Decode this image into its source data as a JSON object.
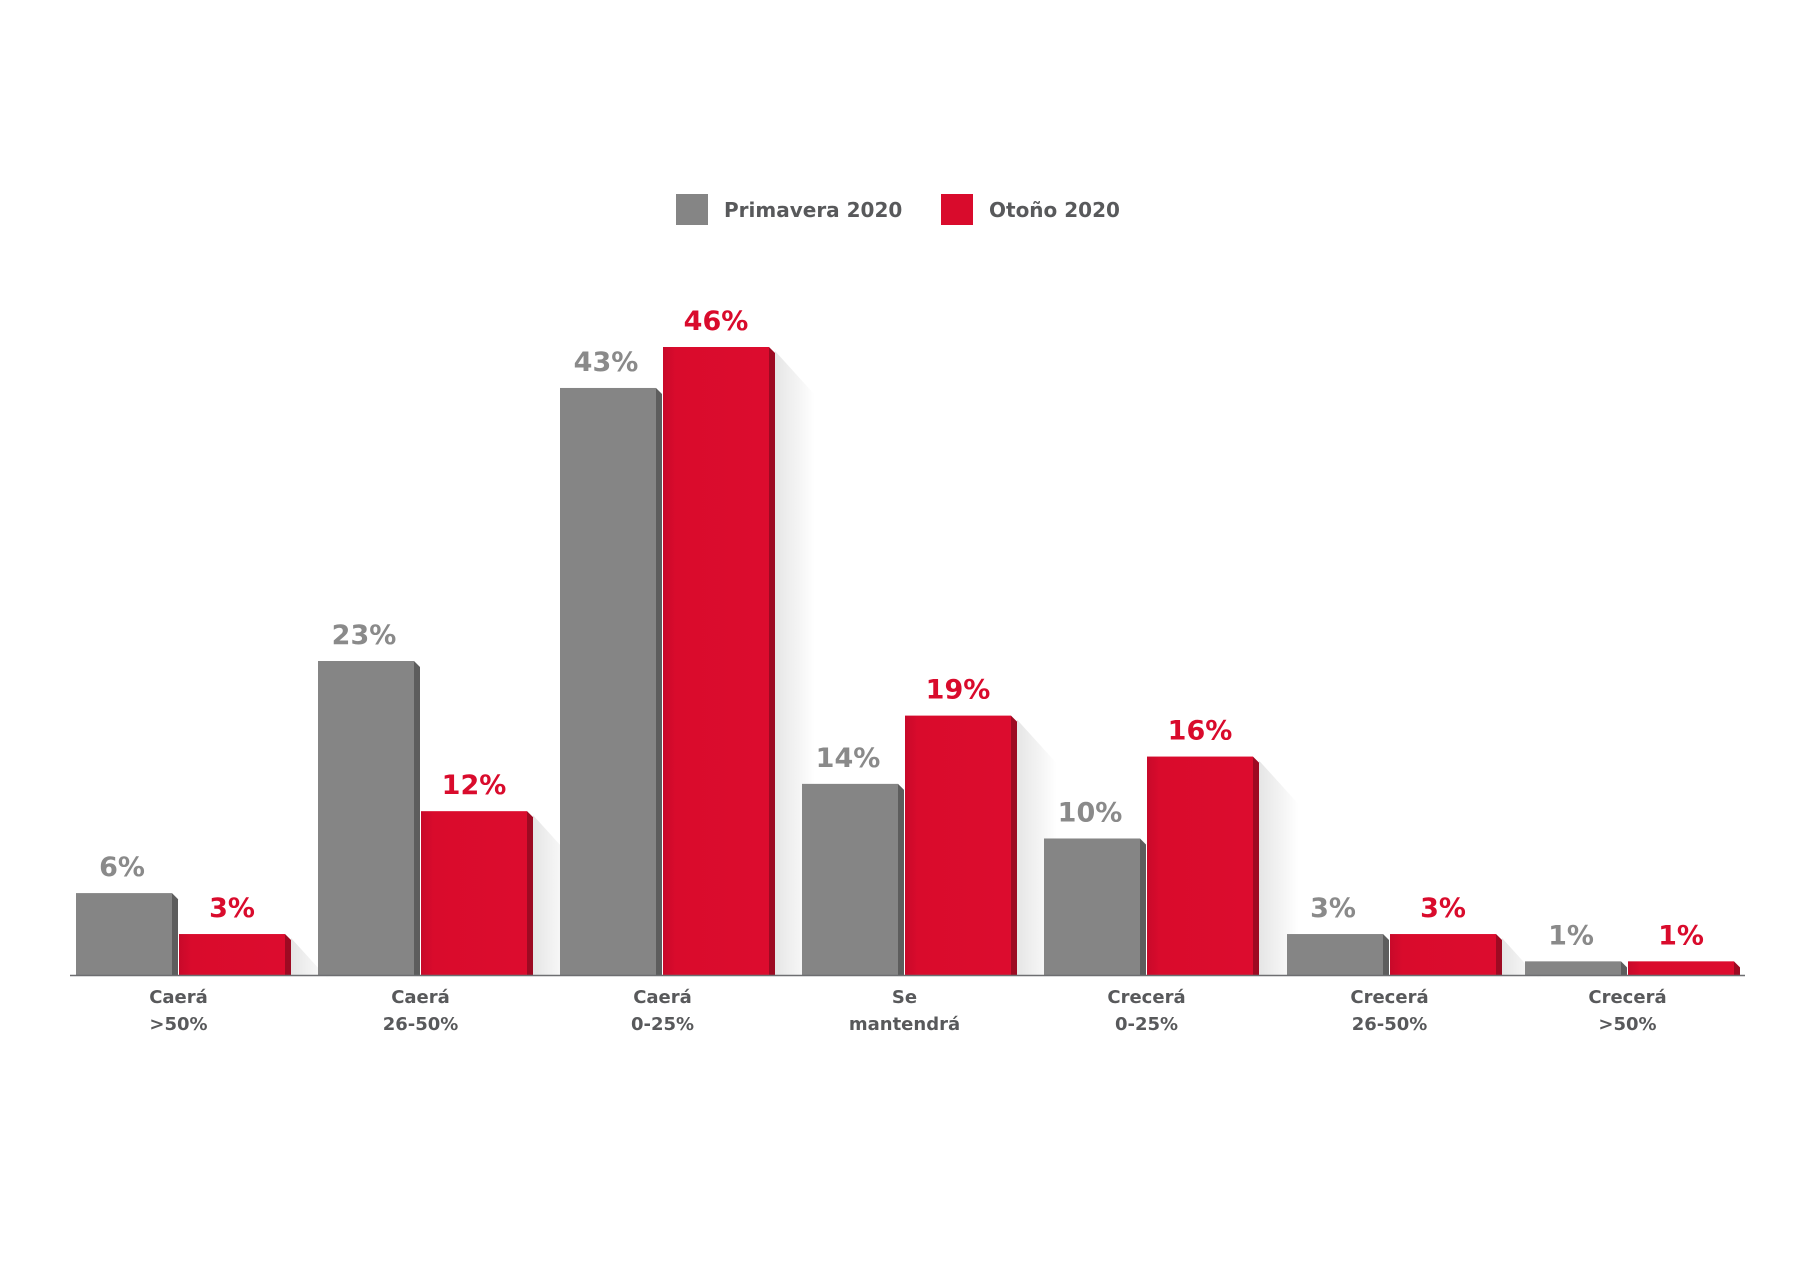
{
  "chart_data": {
    "type": "bar",
    "title": "",
    "xlabel": "",
    "ylabel": "",
    "ylim": [
      0,
      46
    ],
    "grid": false,
    "legend_position": "top-center",
    "categories": [
      [
        "Caerá",
        ">50%"
      ],
      [
        "Caerá",
        "26-50%"
      ],
      [
        "Caerá",
        "0-25%"
      ],
      [
        "Se",
        "mantendrá"
      ],
      [
        "Crecerá",
        "0-25%"
      ],
      [
        "Crecerá",
        "26-50%"
      ],
      [
        "Crecerá",
        ">50%"
      ]
    ],
    "series": [
      {
        "name": "Primavera 2020",
        "color": "#858585",
        "side_color": "#5d5d5d",
        "label_color": "#8a8a8a",
        "values": [
          6,
          23,
          43,
          14,
          10,
          3,
          1
        ],
        "labels": [
          "6%",
          "23%",
          "43%",
          "14%",
          "10%",
          "3%",
          "1%"
        ]
      },
      {
        "name": "Otoño 2020",
        "color": "#d90b2c",
        "side_color": "#9d0a22",
        "label_color": "#d90b2c",
        "values": [
          3,
          12,
          46,
          19,
          16,
          3,
          1
        ],
        "labels": [
          "3%",
          "12%",
          "46%",
          "19%",
          "16%",
          "3%",
          "1%"
        ]
      }
    ]
  }
}
